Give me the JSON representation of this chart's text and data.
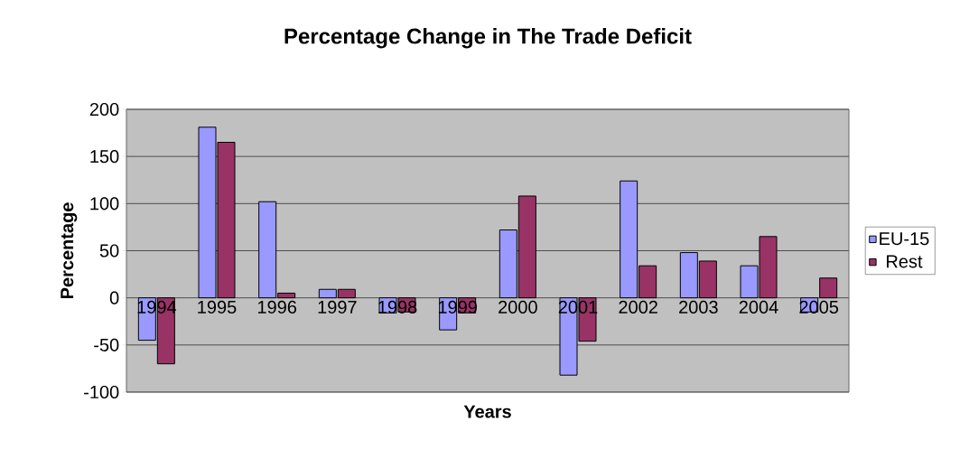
{
  "chart_data": {
    "type": "bar",
    "title": "Percentage Change in The Trade Deficit",
    "xlabel": "Years",
    "ylabel": "Percentage",
    "categories": [
      "1994",
      "1995",
      "1996",
      "1997",
      "1998",
      "1999",
      "2000",
      "2001",
      "2002",
      "2003",
      "2004",
      "2005"
    ],
    "series": [
      {
        "name": "EU-15",
        "color": "#9999ff",
        "values": [
          -45,
          181,
          102,
          9,
          -16,
          -34,
          72,
          -82,
          124,
          48,
          34,
          -15
        ]
      },
      {
        "name": "Rest",
        "color": "#993366",
        "values": [
          -70,
          165,
          5,
          9,
          -15,
          -16,
          108,
          -46,
          34,
          39,
          65,
          21
        ]
      }
    ],
    "ylim": [
      -100,
      200
    ],
    "yticks": [
      -100,
      -50,
      0,
      50,
      100,
      150,
      200
    ],
    "grid": "y",
    "legend": "right"
  }
}
